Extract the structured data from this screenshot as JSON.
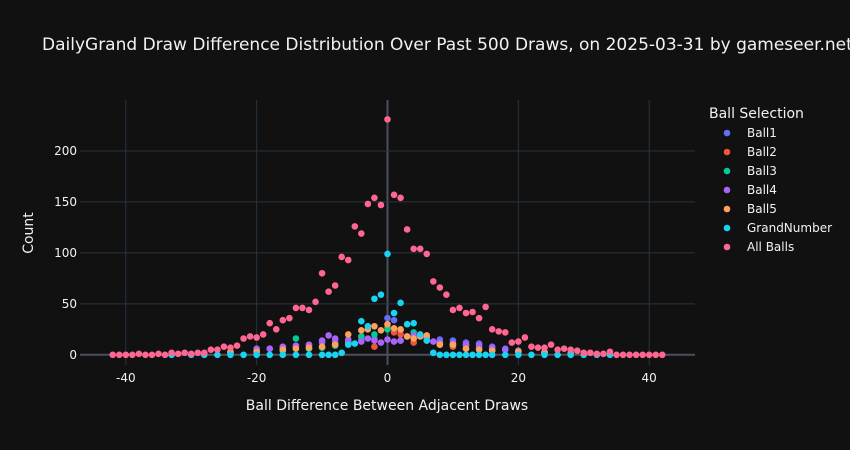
{
  "chart_data": {
    "type": "scatter",
    "title": "DailyGrand Draw Difference Distribution Over Past 500 Draws, on 2025-03-31 by gameseer.net",
    "xlabel": "Ball Difference Between Adjacent Draws",
    "ylabel": "Count",
    "xlim": [
      -47,
      47
    ],
    "ylim": [
      -10,
      250
    ],
    "xticks": [
      -40,
      -20,
      0,
      20,
      40
    ],
    "yticks": [
      0,
      50,
      100,
      150,
      200
    ],
    "grid": true,
    "legend": {
      "title": "Ball Selection",
      "placement": "right"
    },
    "series": [
      {
        "name": "Ball1",
        "color": "#636efa",
        "x": [
          -20,
          -18,
          -16,
          -14,
          -12,
          -10,
          -8,
          -6,
          -4,
          -2,
          0,
          1,
          2,
          4,
          6,
          8,
          10,
          12,
          14,
          16,
          18,
          20,
          24,
          28
        ],
        "y": [
          5,
          6,
          7,
          8,
          9,
          12,
          13,
          15,
          15,
          16,
          36,
          34,
          24,
          16,
          17,
          15,
          14,
          12,
          11,
          8,
          6,
          4,
          3,
          2
        ]
      },
      {
        "name": "Ball2",
        "color": "#ef553b",
        "x": [
          -20,
          -16,
          -12,
          -8,
          -6,
          -4,
          -2,
          0,
          1,
          2,
          4,
          6,
          8,
          10,
          12,
          16,
          20,
          24,
          28
        ],
        "y": [
          3,
          4,
          6,
          10,
          14,
          18,
          8,
          27,
          22,
          20,
          12,
          14,
          10,
          8,
          6,
          4,
          3,
          2,
          1
        ]
      },
      {
        "name": "Ball3",
        "color": "#00cc96",
        "x": [
          -24,
          -20,
          -16,
          -14,
          -12,
          -10,
          -8,
          -6,
          -4,
          -2,
          0,
          2,
          4,
          6,
          8,
          10,
          12,
          14,
          16,
          20,
          24
        ],
        "y": [
          2,
          3,
          4,
          16,
          6,
          7,
          9,
          12,
          18,
          20,
          25,
          14,
          22,
          15,
          12,
          10,
          9,
          7,
          5,
          3,
          2
        ]
      },
      {
        "name": "Ball4",
        "color": "#ab63fa",
        "x": [
          -24,
          -20,
          -18,
          -16,
          -14,
          -12,
          -10,
          -9,
          -8,
          -6,
          -4,
          -3,
          -2,
          -1,
          0,
          1,
          2,
          3,
          4,
          6,
          7,
          8,
          10,
          12,
          14,
          16,
          18,
          20,
          24
        ],
        "y": [
          2,
          6,
          6,
          8,
          9,
          10,
          14,
          19,
          16,
          14,
          13,
          16,
          14,
          12,
          15,
          13,
          14,
          18,
          19,
          17,
          13,
          12,
          11,
          10,
          9,
          7,
          5,
          4,
          2
        ]
      },
      {
        "name": "Ball5",
        "color": "#ffa15a",
        "x": [
          -28,
          -24,
          -20,
          -16,
          -14,
          -12,
          -10,
          -8,
          -6,
          -4,
          -3,
          -2,
          -1,
          0,
          1,
          2,
          3,
          4,
          5,
          6,
          8,
          10,
          12,
          14,
          16,
          20,
          24,
          28
        ],
        "y": [
          1,
          3,
          3,
          5,
          6,
          7,
          8,
          10,
          20,
          24,
          25,
          28,
          24,
          30,
          26,
          25,
          18,
          16,
          18,
          19,
          10,
          10,
          6,
          5,
          4,
          3,
          2,
          1
        ]
      },
      {
        "name": "GrandNumber",
        "color": "#19d3f3",
        "x": [
          -33,
          -30,
          -28,
          -26,
          -24,
          -22,
          -20,
          -18,
          -16,
          -14,
          -12,
          -10,
          -9,
          -8,
          -7,
          -6,
          -5,
          -4,
          -3,
          -2,
          -1,
          0,
          1,
          2,
          3,
          4,
          5,
          6,
          7,
          8,
          9,
          10,
          11,
          12,
          13,
          14,
          15,
          16,
          18,
          20,
          22,
          24,
          26,
          28,
          30,
          32,
          34
        ],
        "y": [
          0,
          0,
          0,
          0,
          0,
          0,
          0,
          0,
          0,
          0,
          0,
          0,
          0,
          0,
          2,
          10,
          11,
          33,
          28,
          55,
          59,
          99,
          41,
          51,
          30,
          31,
          20,
          14,
          2,
          0,
          0,
          0,
          0,
          0,
          0,
          0,
          0,
          0,
          0,
          0,
          0,
          0,
          0,
          0,
          0,
          0,
          0
        ]
      },
      {
        "name": "All Balls",
        "color": "#ff6692",
        "x": [
          -42,
          -41,
          -40,
          -39,
          -38,
          -37,
          -36,
          -35,
          -34,
          -33,
          -32,
          -31,
          -30,
          -29,
          -28,
          -27,
          -26,
          -25,
          -24,
          -23,
          -22,
          -21,
          -20,
          -19,
          -18,
          -17,
          -16,
          -15,
          -14,
          -13,
          -12,
          -11,
          -10,
          -9,
          -8,
          -7,
          -6,
          -5,
          -4,
          -3,
          -2,
          -1,
          0,
          1,
          2,
          3,
          4,
          5,
          6,
          7,
          8,
          9,
          10,
          11,
          12,
          13,
          14,
          15,
          16,
          17,
          18,
          19,
          20,
          21,
          22,
          23,
          24,
          25,
          26,
          27,
          28,
          29,
          30,
          31,
          32,
          33,
          34,
          35,
          36,
          37,
          38,
          39,
          40,
          41,
          42
        ],
        "y": [
          0,
          0,
          0,
          0,
          1,
          0,
          0,
          1,
          0,
          2,
          1,
          2,
          1,
          2,
          2,
          5,
          5,
          8,
          7,
          9,
          16,
          18,
          17,
          20,
          31,
          25,
          34,
          36,
          46,
          46,
          44,
          52,
          80,
          62,
          68,
          96,
          93,
          126,
          119,
          148,
          154,
          147,
          231,
          157,
          154,
          123,
          104,
          104,
          99,
          72,
          66,
          59,
          44,
          46,
          41,
          42,
          36,
          47,
          25,
          23,
          22,
          12,
          13,
          17,
          8,
          7,
          7,
          10,
          5,
          6,
          5,
          4,
          2,
          2,
          1,
          1,
          3,
          0,
          0,
          0,
          0,
          0,
          0,
          0,
          0
        ]
      }
    ]
  }
}
